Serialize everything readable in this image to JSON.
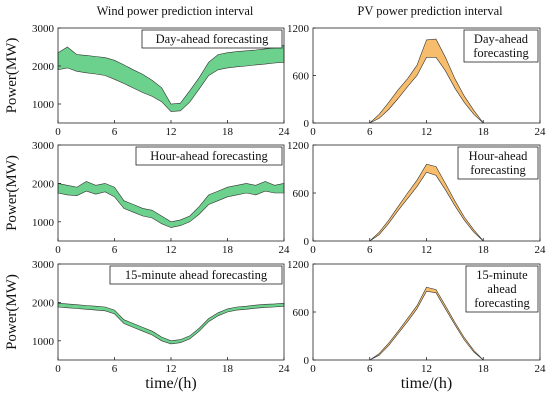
{
  "column_titles": [
    "Wind power prediction interval",
    "PV power prediction interval"
  ],
  "colors": {
    "wind": "#6cd18c",
    "pv": "#f7bd6c",
    "line": "#333333"
  },
  "chart_data": [
    {
      "type": "area",
      "id": "wind-day",
      "column": "wind",
      "title": "",
      "legend": "Day-ahead forecasting",
      "xlabel": "",
      "ylabel": "Power(MW)",
      "xlim": [
        0,
        24
      ],
      "ylim": [
        500,
        3000
      ],
      "xticks": [
        0,
        6,
        12,
        18,
        24
      ],
      "yticks": [
        1000,
        2000,
        3000
      ],
      "x": [
        0,
        1,
        2,
        3,
        4,
        5,
        6,
        7,
        8,
        9,
        10,
        11,
        12,
        13,
        14,
        15,
        16,
        17,
        18,
        19,
        20,
        21,
        22,
        23,
        24
      ],
      "lower": [
        1900,
        1950,
        1860,
        1820,
        1790,
        1750,
        1650,
        1540,
        1420,
        1300,
        1200,
        1060,
        800,
        820,
        1050,
        1400,
        1750,
        1900,
        1950,
        1980,
        2000,
        2030,
        2050,
        2080,
        2100
      ],
      "upper": [
        2350,
        2500,
        2300,
        2280,
        2250,
        2220,
        2150,
        2030,
        1900,
        1780,
        1620,
        1430,
        1000,
        1020,
        1350,
        1700,
        2100,
        2300,
        2350,
        2380,
        2400,
        2420,
        2450,
        2480,
        2550
      ]
    },
    {
      "type": "area",
      "id": "pv-day",
      "column": "pv",
      "title": "",
      "legend": "Day-ahead forecasting",
      "xlabel": "",
      "ylabel": "",
      "xlim": [
        0,
        24
      ],
      "ylim": [
        0,
        1200
      ],
      "xticks": [
        0,
        6,
        12,
        18,
        24
      ],
      "yticks": [
        0,
        600,
        1200
      ],
      "x": [
        6,
        7,
        8,
        9,
        10,
        11,
        12,
        13,
        14,
        15,
        16,
        17,
        18
      ],
      "lower": [
        0,
        60,
        170,
        310,
        460,
        600,
        830,
        830,
        660,
        440,
        260,
        110,
        0
      ],
      "upper": [
        0,
        110,
        260,
        420,
        560,
        730,
        1050,
        1060,
        830,
        560,
        340,
        160,
        0
      ]
    },
    {
      "type": "area",
      "id": "wind-hour",
      "column": "wind",
      "title": "",
      "legend": "Hour-ahead forecasting",
      "xlabel": "",
      "ylabel": "Power(MW)",
      "xlim": [
        0,
        24
      ],
      "ylim": [
        500,
        3000
      ],
      "xticks": [
        0,
        6,
        12,
        18,
        24
      ],
      "yticks": [
        1000,
        2000,
        3000
      ],
      "x": [
        0,
        1,
        2,
        3,
        4,
        5,
        6,
        7,
        8,
        9,
        10,
        11,
        12,
        13,
        14,
        15,
        16,
        17,
        18,
        19,
        20,
        21,
        22,
        23,
        24
      ],
      "lower": [
        1750,
        1700,
        1680,
        1800,
        1720,
        1780,
        1650,
        1350,
        1250,
        1150,
        1100,
        950,
        850,
        900,
        1000,
        1200,
        1450,
        1550,
        1650,
        1700,
        1750,
        1700,
        1800,
        1750,
        1750
      ],
      "upper": [
        2000,
        1950,
        1900,
        2050,
        1950,
        2000,
        1900,
        1550,
        1450,
        1350,
        1300,
        1150,
        1000,
        1050,
        1150,
        1400,
        1700,
        1800,
        1900,
        1950,
        2000,
        1950,
        2050,
        1950,
        2000
      ]
    },
    {
      "type": "area",
      "id": "pv-hour",
      "column": "pv",
      "title": "",
      "legend": "Hour-ahead forecasting",
      "xlabel": "",
      "ylabel": "",
      "xlim": [
        0,
        24
      ],
      "ylim": [
        0,
        1200
      ],
      "xticks": [
        0,
        6,
        12,
        18,
        24
      ],
      "yticks": [
        0,
        600,
        1200
      ],
      "x": [
        6,
        7,
        8,
        9,
        10,
        11,
        12,
        13,
        14,
        15,
        16,
        17,
        18
      ],
      "lower": [
        0,
        80,
        220,
        380,
        530,
        680,
        860,
        820,
        640,
        440,
        260,
        110,
        0
      ],
      "upper": [
        0,
        110,
        260,
        430,
        600,
        760,
        960,
        930,
        720,
        500,
        300,
        140,
        0
      ]
    },
    {
      "type": "area",
      "id": "wind-15min",
      "column": "wind",
      "title": "",
      "legend": "15-minute ahead forecasting",
      "xlabel": "time/(h)",
      "ylabel": "Power(MW)",
      "xlim": [
        0,
        24
      ],
      "ylim": [
        500,
        3000
      ],
      "xticks": [
        0,
        6,
        12,
        18,
        24
      ],
      "yticks": [
        1000,
        2000,
        3000
      ],
      "x": [
        0,
        1,
        2,
        3,
        4,
        5,
        6,
        7,
        8,
        9,
        10,
        11,
        12,
        13,
        14,
        15,
        16,
        17,
        18,
        19,
        20,
        21,
        22,
        23,
        24
      ],
      "lower": [
        1880,
        1860,
        1840,
        1820,
        1800,
        1780,
        1700,
        1450,
        1350,
        1250,
        1150,
        1000,
        920,
        950,
        1050,
        1250,
        1500,
        1650,
        1750,
        1800,
        1820,
        1850,
        1870,
        1880,
        1900
      ],
      "upper": [
        1980,
        1960,
        1940,
        1920,
        1900,
        1880,
        1800,
        1550,
        1450,
        1350,
        1250,
        1100,
        1000,
        1030,
        1130,
        1330,
        1580,
        1730,
        1830,
        1880,
        1900,
        1930,
        1950,
        1960,
        1980
      ]
    },
    {
      "type": "area",
      "id": "pv-15min",
      "column": "pv",
      "title": "",
      "legend": "15-minute ahead forecasting",
      "xlabel": "time/(h)",
      "ylabel": "",
      "xlim": [
        0,
        24
      ],
      "ylim": [
        0,
        1200
      ],
      "xticks": [
        0,
        6,
        12,
        18,
        24
      ],
      "yticks": [
        0,
        600,
        1200
      ],
      "x": [
        6,
        7,
        8,
        9,
        10,
        11,
        12,
        13,
        14,
        15,
        16,
        17,
        18
      ],
      "lower": [
        0,
        60,
        180,
        330,
        480,
        640,
        860,
        840,
        640,
        440,
        250,
        100,
        0
      ],
      "upper": [
        0,
        80,
        210,
        360,
        520,
        680,
        910,
        880,
        680,
        470,
        280,
        120,
        0
      ]
    }
  ]
}
